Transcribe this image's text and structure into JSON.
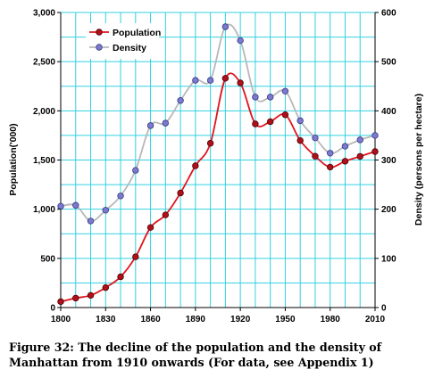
{
  "chart_data": {
    "type": "line",
    "x": [
      1800,
      1810,
      1820,
      1830,
      1840,
      1850,
      1860,
      1870,
      1880,
      1890,
      1900,
      1910,
      1920,
      1930,
      1940,
      1950,
      1960,
      1970,
      1980,
      1990,
      2000,
      2010
    ],
    "series": [
      {
        "name": "Population",
        "axis": "left",
        "color": "#e0141e",
        "marker_color": "#b0101a",
        "values": [
          60,
          96,
          124,
          203,
          313,
          516,
          814,
          942,
          1165,
          1441,
          1670,
          2331,
          2284,
          1867,
          1890,
          1960,
          1698,
          1539,
          1428,
          1488,
          1537,
          1586
        ]
      },
      {
        "name": "Density",
        "axis": "right",
        "color": "#b8b8b8",
        "marker_color": "#7a7ad0",
        "values": [
          206,
          208,
          176,
          198,
          227,
          279,
          370,
          375,
          421,
          462,
          462,
          571,
          543,
          428,
          428,
          440,
          380,
          345,
          314,
          328,
          341,
          350
        ]
      }
    ],
    "xticks": [
      "1800",
      "1830",
      "1860",
      "1890",
      "1920",
      "1950",
      "1980",
      "2010"
    ],
    "yticks_left": [
      "0",
      "500",
      "1,000",
      "1,500",
      "2,000",
      "2,500",
      "3,000"
    ],
    "yticks_right": [
      "0",
      "100",
      "200",
      "300",
      "400",
      "500",
      "600"
    ],
    "xlim": [
      1800,
      2010
    ],
    "ylim_left": [
      0,
      3000
    ],
    "ylim_right": [
      0,
      600
    ],
    "ylabel_left": "Population('000)",
    "ylabel_right": "Density (persons per hectare)",
    "grid": true,
    "grid_color": "#33d0e0",
    "legend": "top-left"
  },
  "caption": {
    "line1": "Figure 32: The decline of the population and the density of",
    "line2": "Manhattan from 1910 onwards (For data, see Appendix 1)"
  }
}
